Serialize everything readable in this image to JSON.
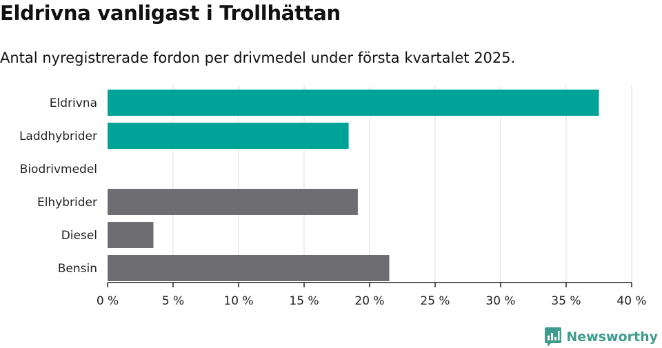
{
  "header": {
    "title": "Eldrivna vanligast i Trollhättan",
    "subtitle": "Antal nyregistrerade fordon per drivmedel under första kvartalet 2025."
  },
  "brand": {
    "name": "Newsworthy",
    "icon": "newsworthy-logo-icon",
    "color": "#3f9c8c"
  },
  "colors": {
    "electric": "#00a398",
    "fossil": "#6e6d72",
    "grid": "#dddddd"
  },
  "chart_data": {
    "type": "bar",
    "orientation": "horizontal",
    "title": "Eldrivna vanligast i Trollhättan",
    "subtitle": "Antal nyregistrerade fordon per drivmedel under första kvartalet 2025.",
    "categories": [
      "Eldrivna",
      "Laddhybrider",
      "Biodrivmedel",
      "Elhybrider",
      "Diesel",
      "Bensin"
    ],
    "values": [
      37.5,
      18.4,
      0,
      19.1,
      3.5,
      21.5
    ],
    "bar_colors": [
      "#00a398",
      "#00a398",
      "#6e6d72",
      "#6e6d72",
      "#6e6d72",
      "#6e6d72"
    ],
    "xlim": [
      0,
      40
    ],
    "x_ticks": [
      0,
      5,
      10,
      15,
      20,
      25,
      30,
      35,
      40
    ],
    "x_tick_labels": [
      "0 %",
      "5 %",
      "10 %",
      "15 %",
      "20 %",
      "25 %",
      "30 %",
      "35 %",
      "40 %"
    ],
    "xlabel": "",
    "ylabel": "",
    "grid": "vertical",
    "legend": "none"
  }
}
